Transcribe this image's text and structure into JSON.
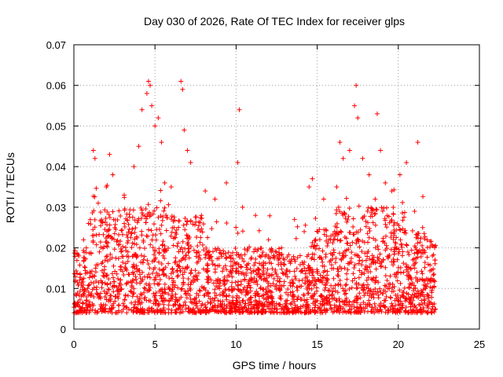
{
  "chart_data": {
    "type": "scatter",
    "title": "Day 030 of 2026, Rate Of TEC Index for receiver glps",
    "xlabel": "GPS time / hours",
    "ylabel": "ROTI / TECUs",
    "xlim": [
      0,
      25
    ],
    "ylim": [
      0,
      0.07
    ],
    "xticks": [
      0,
      5,
      10,
      15,
      20,
      25
    ],
    "xtick_labels": [
      "0",
      "5",
      "10",
      "15",
      "20",
      "25"
    ],
    "yticks": [
      0,
      0.01,
      0.02,
      0.03,
      0.04,
      0.05,
      0.06,
      0.07
    ],
    "ytick_labels": [
      "0",
      "0.01",
      "0.02",
      "0.03",
      "0.04",
      "0.05",
      "0.06",
      "0.07"
    ],
    "grid": true,
    "marker": "plus",
    "series_color": "#ff0000",
    "series": [
      {
        "name": "ROTI",
        "x_range_observed": [
          0,
          22.3
        ],
        "points_sample": [
          [
            0.1,
            0.012
          ],
          [
            0.3,
            0.018
          ],
          [
            0.6,
            0.022
          ],
          [
            0.9,
            0.026
          ],
          [
            1.2,
            0.044
          ],
          [
            1.3,
            0.042
          ],
          [
            1.5,
            0.031
          ],
          [
            2.0,
            0.035
          ],
          [
            2.2,
            0.043
          ],
          [
            2.4,
            0.038
          ],
          [
            3.1,
            0.033
          ],
          [
            3.7,
            0.04
          ],
          [
            4.0,
            0.045
          ],
          [
            4.2,
            0.054
          ],
          [
            4.5,
            0.058
          ],
          [
            4.6,
            0.061
          ],
          [
            4.7,
            0.06
          ],
          [
            4.8,
            0.055
          ],
          [
            5.0,
            0.05
          ],
          [
            5.2,
            0.052
          ],
          [
            5.4,
            0.046
          ],
          [
            5.6,
            0.036
          ],
          [
            6.0,
            0.035
          ],
          [
            6.6,
            0.061
          ],
          [
            6.7,
            0.059
          ],
          [
            6.8,
            0.049
          ],
          [
            7.0,
            0.044
          ],
          [
            7.2,
            0.041
          ],
          [
            8.1,
            0.034
          ],
          [
            8.7,
            0.032
          ],
          [
            9.4,
            0.036
          ],
          [
            10.1,
            0.041
          ],
          [
            10.2,
            0.054
          ],
          [
            10.4,
            0.03
          ],
          [
            11.2,
            0.028
          ],
          [
            12.0,
            0.022
          ],
          [
            12.8,
            0.02
          ],
          [
            13.6,
            0.027
          ],
          [
            14.2,
            0.024
          ],
          [
            14.5,
            0.035
          ],
          [
            14.7,
            0.037
          ],
          [
            15.4,
            0.032
          ],
          [
            16.2,
            0.035
          ],
          [
            16.4,
            0.046
          ],
          [
            16.6,
            0.042
          ],
          [
            17.0,
            0.044
          ],
          [
            17.3,
            0.055
          ],
          [
            17.4,
            0.06
          ],
          [
            17.5,
            0.052
          ],
          [
            17.8,
            0.042
          ],
          [
            18.2,
            0.038
          ],
          [
            18.7,
            0.053
          ],
          [
            18.9,
            0.044
          ],
          [
            19.2,
            0.036
          ],
          [
            19.6,
            0.034
          ],
          [
            20.1,
            0.038
          ],
          [
            20.5,
            0.041
          ],
          [
            21.0,
            0.029
          ],
          [
            21.2,
            0.046
          ],
          [
            21.5,
            0.025
          ],
          [
            22.1,
            0.018
          ],
          [
            22.2,
            0.012
          ]
        ]
      }
    ]
  }
}
